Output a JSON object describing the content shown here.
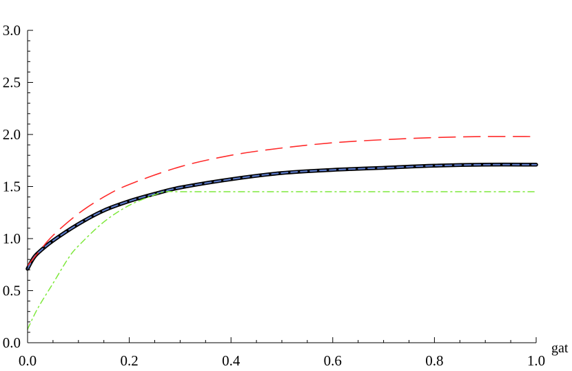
{
  "chart_data": {
    "type": "line",
    "title": "",
    "xlabel": "gat",
    "ylabel": "",
    "xlim": [
      0,
      1
    ],
    "ylim": [
      0,
      3
    ],
    "x_ticks": [
      0.0,
      0.2,
      0.4,
      0.6,
      0.8,
      1.0
    ],
    "x_tick_labels": [
      "0.0",
      "0.2",
      "0.4",
      "0.6",
      "0.8",
      "1.0"
    ],
    "y_ticks": [
      0.0,
      0.5,
      1.0,
      1.5,
      2.0,
      2.5,
      3.0
    ],
    "y_tick_labels": [
      "0.0",
      "0.5",
      "1.0",
      "1.5",
      "2.0",
      "2.5",
      "3.0"
    ],
    "grid": false,
    "legend": "none",
    "series": [
      {
        "style": "solid-thick",
        "color": "#000000",
        "x": [
          0,
          0.01,
          0.02,
          0.05,
          0.1,
          0.15,
          0.2,
          0.25,
          0.3,
          0.4,
          0.5,
          0.6,
          0.7,
          0.8,
          0.9,
          1.0
        ],
        "y": [
          0.71,
          0.8,
          0.86,
          0.98,
          1.14,
          1.27,
          1.36,
          1.43,
          1.49,
          1.57,
          1.63,
          1.66,
          1.68,
          1.7,
          1.71,
          1.71
        ]
      },
      {
        "style": "dashed",
        "color": "#5b79c7",
        "x": [
          0,
          0.01,
          0.02,
          0.05,
          0.1,
          0.15,
          0.2,
          0.25,
          0.3,
          0.4,
          0.5,
          0.6,
          0.7,
          0.8,
          0.9,
          1.0
        ],
        "y": [
          0.71,
          0.8,
          0.86,
          0.98,
          1.14,
          1.27,
          1.36,
          1.43,
          1.49,
          1.57,
          1.63,
          1.66,
          1.68,
          1.7,
          1.71,
          1.71
        ]
      },
      {
        "style": "long-dashed",
        "color": "#ff2a2a",
        "x": [
          0,
          0.02,
          0.05,
          0.1,
          0.15,
          0.2,
          0.3,
          0.4,
          0.5,
          0.6,
          0.7,
          0.8,
          0.9,
          1.0
        ],
        "y": [
          0.74,
          0.86,
          1.03,
          1.24,
          1.4,
          1.52,
          1.69,
          1.8,
          1.87,
          1.92,
          1.95,
          1.97,
          1.98,
          1.98
        ]
      },
      {
        "style": "dash-dot",
        "color": "#7de83a",
        "x": [
          0,
          0.02,
          0.05,
          0.08,
          0.1,
          0.15,
          0.2,
          0.25,
          0.27,
          0.3,
          0.4,
          0.6,
          0.8,
          1.0
        ],
        "y": [
          0.13,
          0.33,
          0.57,
          0.81,
          0.93,
          1.16,
          1.32,
          1.42,
          1.45,
          1.45,
          1.45,
          1.45,
          1.45,
          1.45
        ]
      }
    ]
  }
}
